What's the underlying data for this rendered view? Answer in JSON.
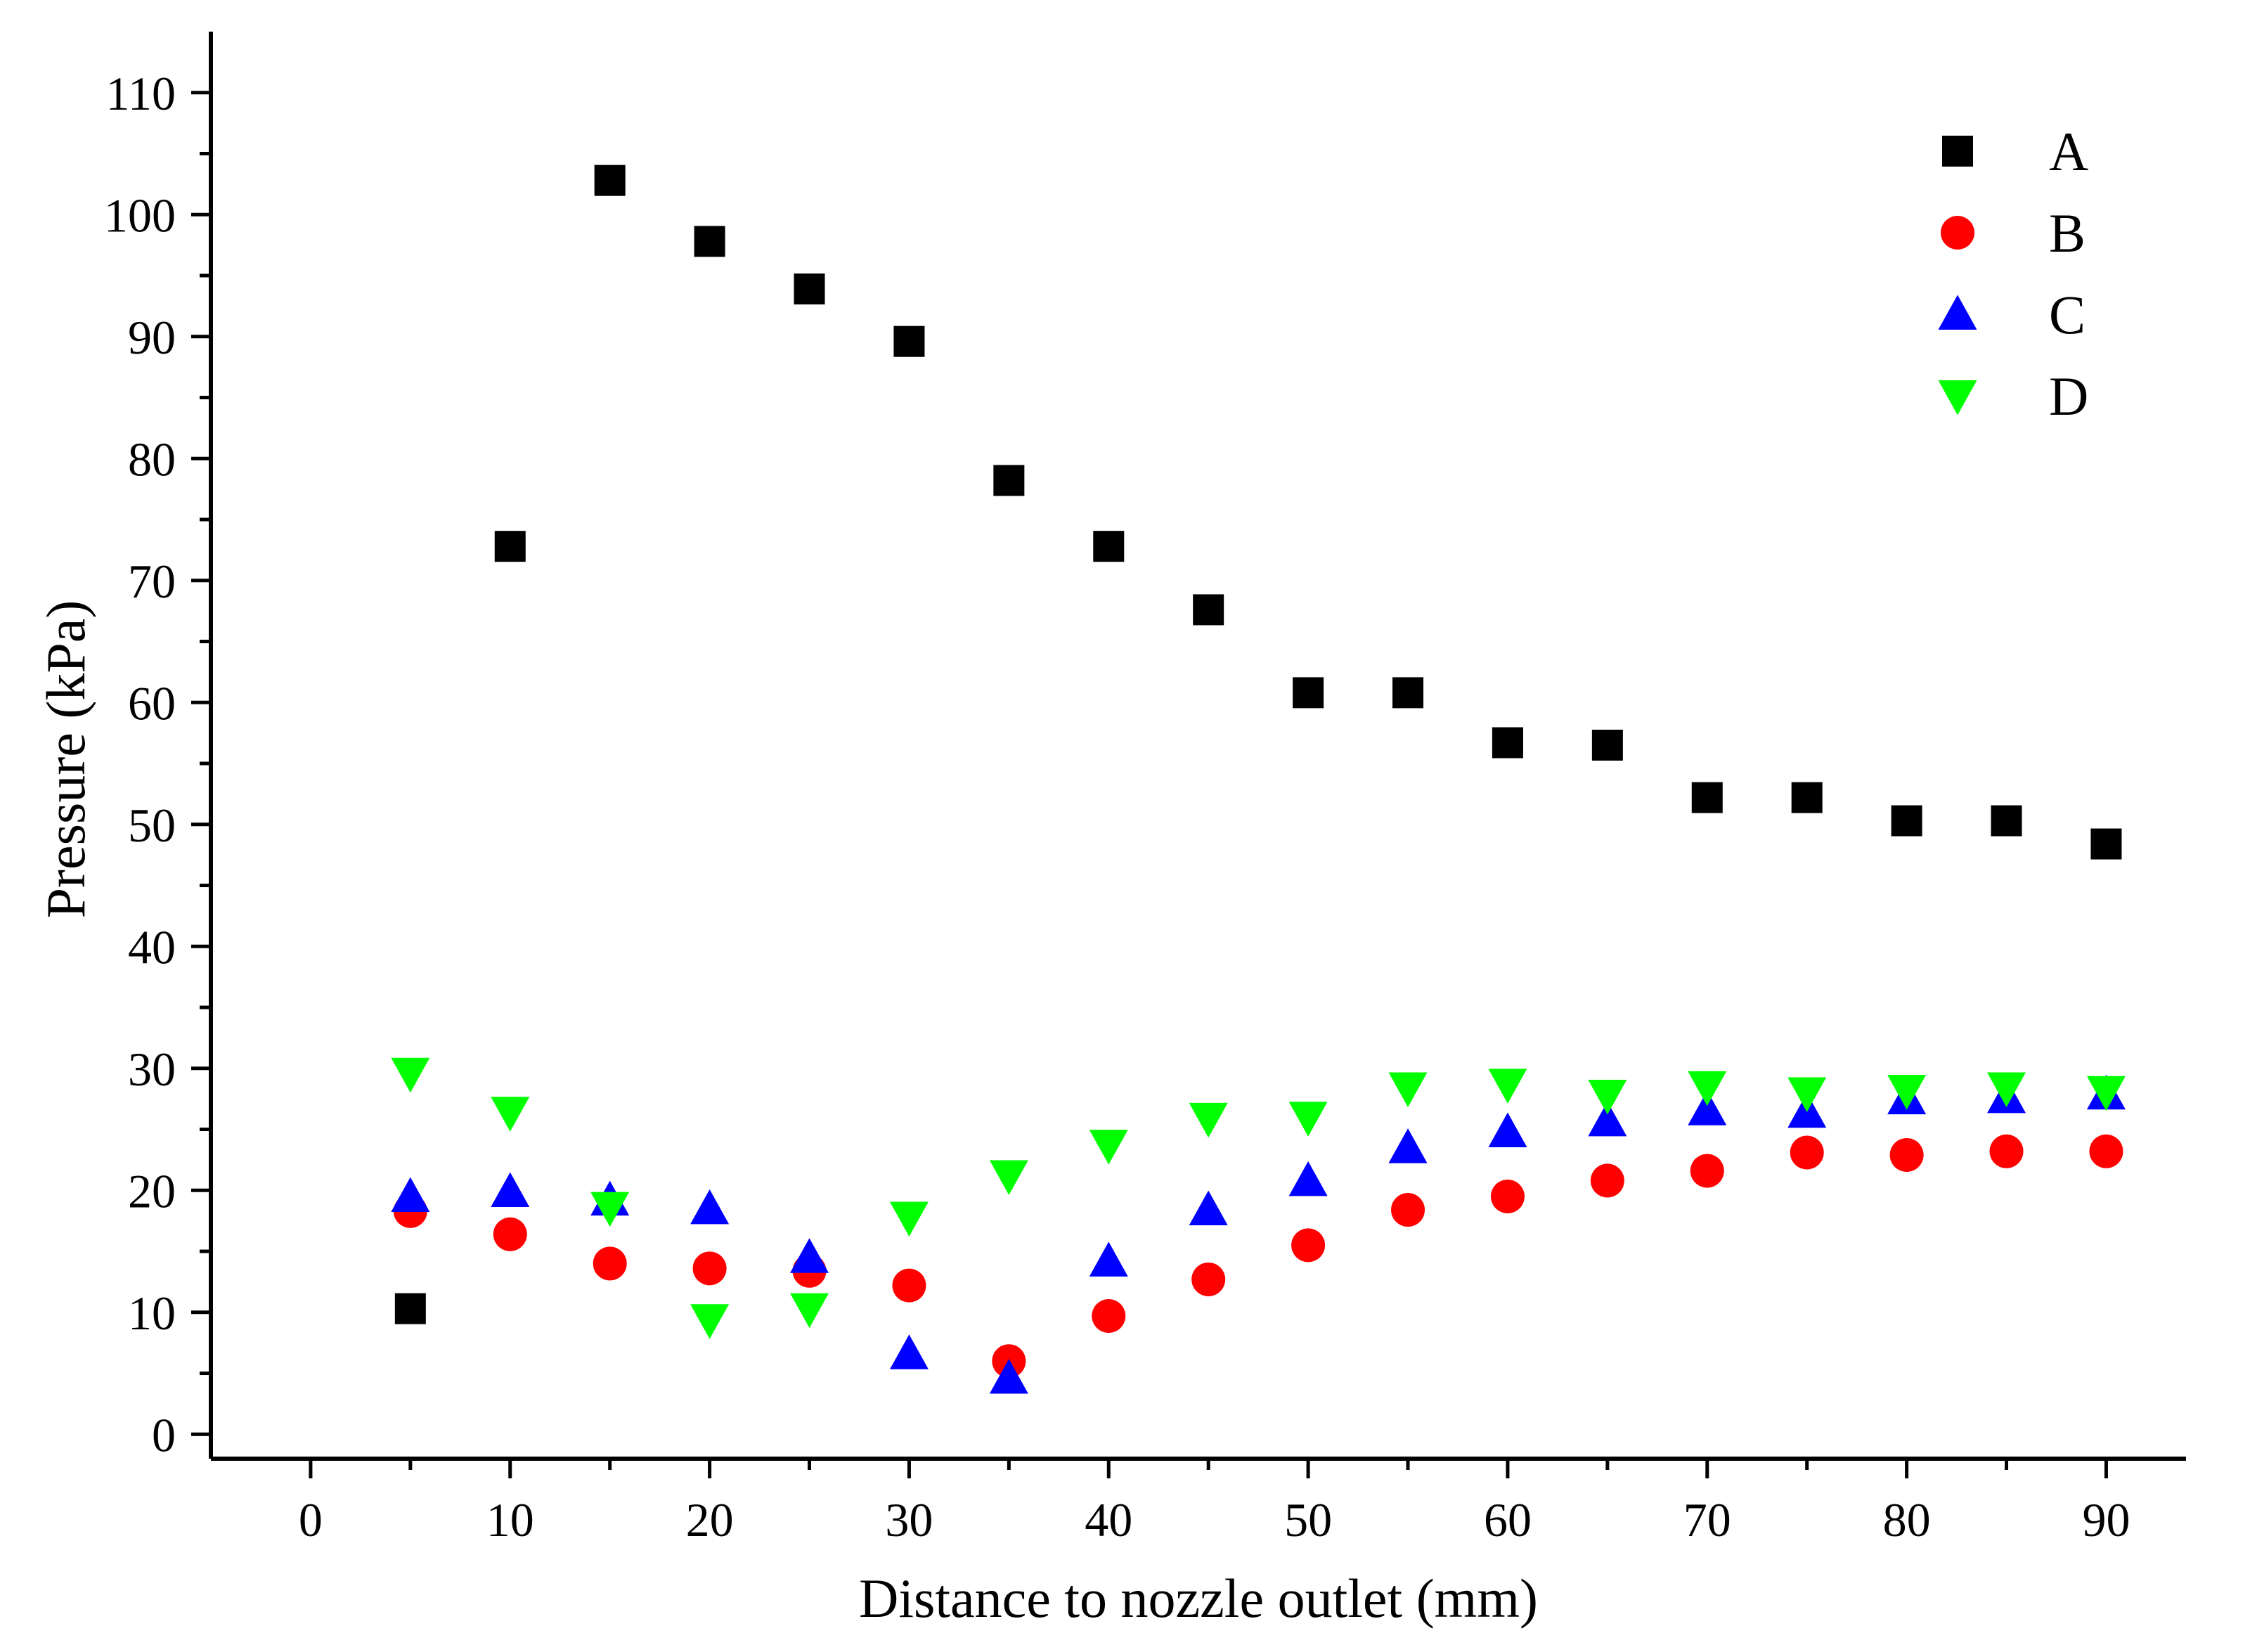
{
  "chart_data": {
    "type": "scatter",
    "title": "",
    "xlabel": "Distance to nozzle outlet (mm)",
    "ylabel": "Pressure (kPa)",
    "xlim": [
      -5,
      94
    ],
    "ylim": [
      -2,
      115
    ],
    "xticks": [
      0,
      10,
      20,
      30,
      40,
      50,
      60,
      70,
      80,
      90
    ],
    "yticks": [
      0,
      10,
      20,
      30,
      40,
      50,
      60,
      70,
      80,
      90,
      100,
      110
    ],
    "grid": false,
    "legend_position": "top-right",
    "x": [
      5,
      10,
      15,
      20,
      25,
      30,
      35,
      40,
      45,
      50,
      55,
      60,
      65,
      70,
      75,
      80,
      85,
      90
    ],
    "series": [
      {
        "name": "A",
        "marker": "square",
        "color": "#000000",
        "values": [
          10.3,
          72.8,
          102.8,
          97.8,
          93.9,
          89.6,
          78.2,
          72.8,
          67.6,
          60.8,
          60.8,
          56.7,
          56.5,
          52.2,
          52.2,
          50.3,
          50.3,
          48.4
        ]
      },
      {
        "name": "B",
        "marker": "circle",
        "color": "#ff0000",
        "values": [
          18.3,
          16.4,
          14.0,
          13.6,
          13.4,
          12.2,
          6.0,
          9.7,
          12.7,
          15.5,
          18.4,
          19.5,
          20.8,
          21.6,
          23.1,
          22.9,
          23.2,
          23.2
        ]
      },
      {
        "name": "C",
        "marker": "triangle-up",
        "color": "#0000ff",
        "values": [
          19.5,
          19.9,
          19.2,
          18.5,
          14.5,
          6.6,
          4.6,
          14.2,
          18.4,
          20.8,
          23.5,
          24.8,
          25.7,
          26.6,
          26.4,
          27.5,
          27.6,
          27.9
        ]
      },
      {
        "name": "D",
        "marker": "triangle-down",
        "color": "#00ff00",
        "values": [
          29.6,
          26.4,
          18.6,
          9.4,
          10.3,
          17.8,
          21.2,
          23.7,
          25.9,
          26.0,
          28.4,
          28.7,
          27.8,
          28.5,
          28.0,
          28.2,
          28.4,
          28.1
        ]
      }
    ]
  }
}
